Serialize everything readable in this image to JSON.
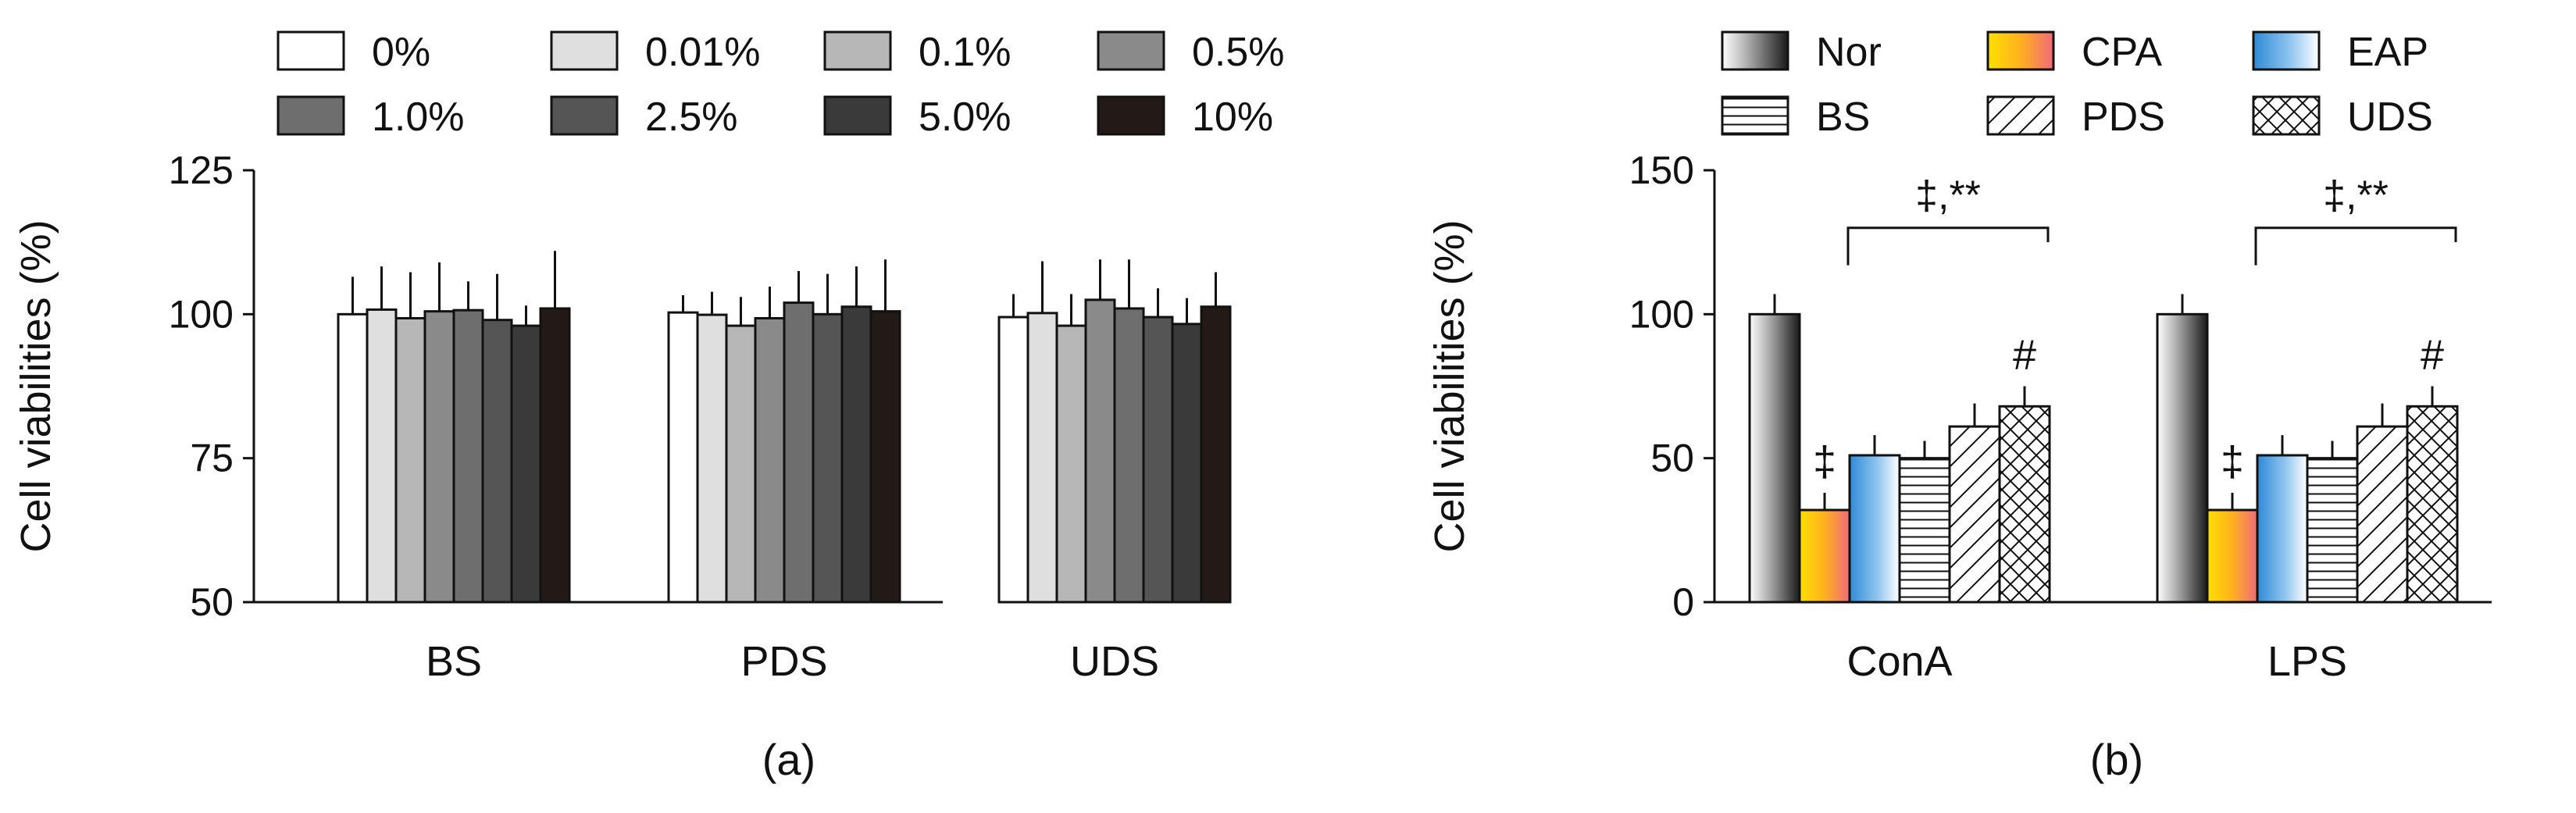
{
  "chart_data": [
    {
      "type": "bar",
      "panel_label": "(a)",
      "ylabel": "Cell viabilities (%)",
      "xlabel": "",
      "ylim": [
        50,
        125
      ],
      "yticks": [
        "50",
        "75",
        "100",
        "125"
      ],
      "ytick_values": [
        50,
        75,
        100,
        125
      ],
      "categories": [
        "BS",
        "PDS",
        "UDS"
      ],
      "legend": {
        "position": "top",
        "columns": 4
      },
      "series": [
        {
          "name": "0%",
          "color": "#ffffff",
          "pattern": "solid",
          "values": [
            100.0,
            100.3,
            99.5
          ],
          "errors": [
            6.5,
            3.0,
            4.0
          ]
        },
        {
          "name": "0.01%",
          "color": "#dfdfdf",
          "pattern": "solid",
          "values": [
            100.8,
            99.9,
            100.2
          ],
          "errors": [
            7.5,
            4.0,
            9.0
          ]
        },
        {
          "name": "0.1%",
          "color": "#b7b7b7",
          "pattern": "solid",
          "values": [
            99.3,
            98.0,
            98.0
          ],
          "errors": [
            8.0,
            5.0,
            5.5
          ]
        },
        {
          "name": "0.5%",
          "color": "#8a8a8a",
          "pattern": "solid",
          "values": [
            100.5,
            99.3,
            102.5
          ],
          "errors": [
            8.5,
            5.5,
            7.0
          ]
        },
        {
          "name": "1.0%",
          "color": "#6e6e6e",
          "pattern": "solid",
          "values": [
            100.7,
            102.0,
            101.0
          ],
          "errors": [
            5.0,
            5.5,
            8.5
          ]
        },
        {
          "name": "2.5%",
          "color": "#555555",
          "pattern": "solid",
          "values": [
            99.0,
            100.0,
            99.5
          ],
          "errors": [
            8.0,
            7.0,
            5.0
          ]
        },
        {
          "name": "5.0%",
          "color": "#3b3a3a",
          "pattern": "solid",
          "values": [
            98.0,
            101.3,
            98.3
          ],
          "errors": [
            3.5,
            7.0,
            4.5
          ]
        },
        {
          "name": "10%",
          "color": "#231a18",
          "pattern": "solid",
          "values": [
            101.0,
            100.5,
            101.3
          ],
          "errors": [
            10.0,
            9.0,
            6.0
          ]
        }
      ]
    },
    {
      "type": "bar",
      "panel_label": "(b)",
      "ylabel": "Cell viabilities (%)",
      "xlabel": "",
      "ylim": [
        0,
        150
      ],
      "yticks": [
        "0",
        "50",
        "100",
        "150"
      ],
      "ytick_values": [
        0,
        50,
        100,
        150
      ],
      "categories": [
        "ConA",
        "LPS"
      ],
      "legend": {
        "position": "top",
        "columns": 3
      },
      "series": [
        {
          "name": "Nor",
          "color": "#808080",
          "pattern": "gray-gradient",
          "values": [
            100,
            100
          ],
          "errors": [
            7,
            7
          ]
        },
        {
          "name": "CPA",
          "color": "#f5a623",
          "pattern": "orange-gradient",
          "values": [
            32,
            32
          ],
          "errors": [
            6,
            6
          ]
        },
        {
          "name": "EAP",
          "color": "#5aa0dc",
          "pattern": "blue-gradient",
          "values": [
            51,
            51
          ],
          "errors": [
            7,
            7
          ]
        },
        {
          "name": "BS",
          "color": "#111111",
          "pattern": "horizontal",
          "values": [
            50,
            50
          ],
          "errors": [
            6,
            6
          ]
        },
        {
          "name": "PDS",
          "color": "#111111",
          "pattern": "diagonal",
          "values": [
            61,
            61
          ],
          "errors": [
            8,
            8
          ]
        },
        {
          "name": "UDS",
          "color": "#111111",
          "pattern": "crosshatch",
          "values": [
            68,
            68
          ],
          "errors": [
            7,
            7
          ]
        }
      ],
      "annotations": {
        "cpa_mark": "‡",
        "uds_mark": "#",
        "bracket_label": "‡,**"
      }
    }
  ]
}
